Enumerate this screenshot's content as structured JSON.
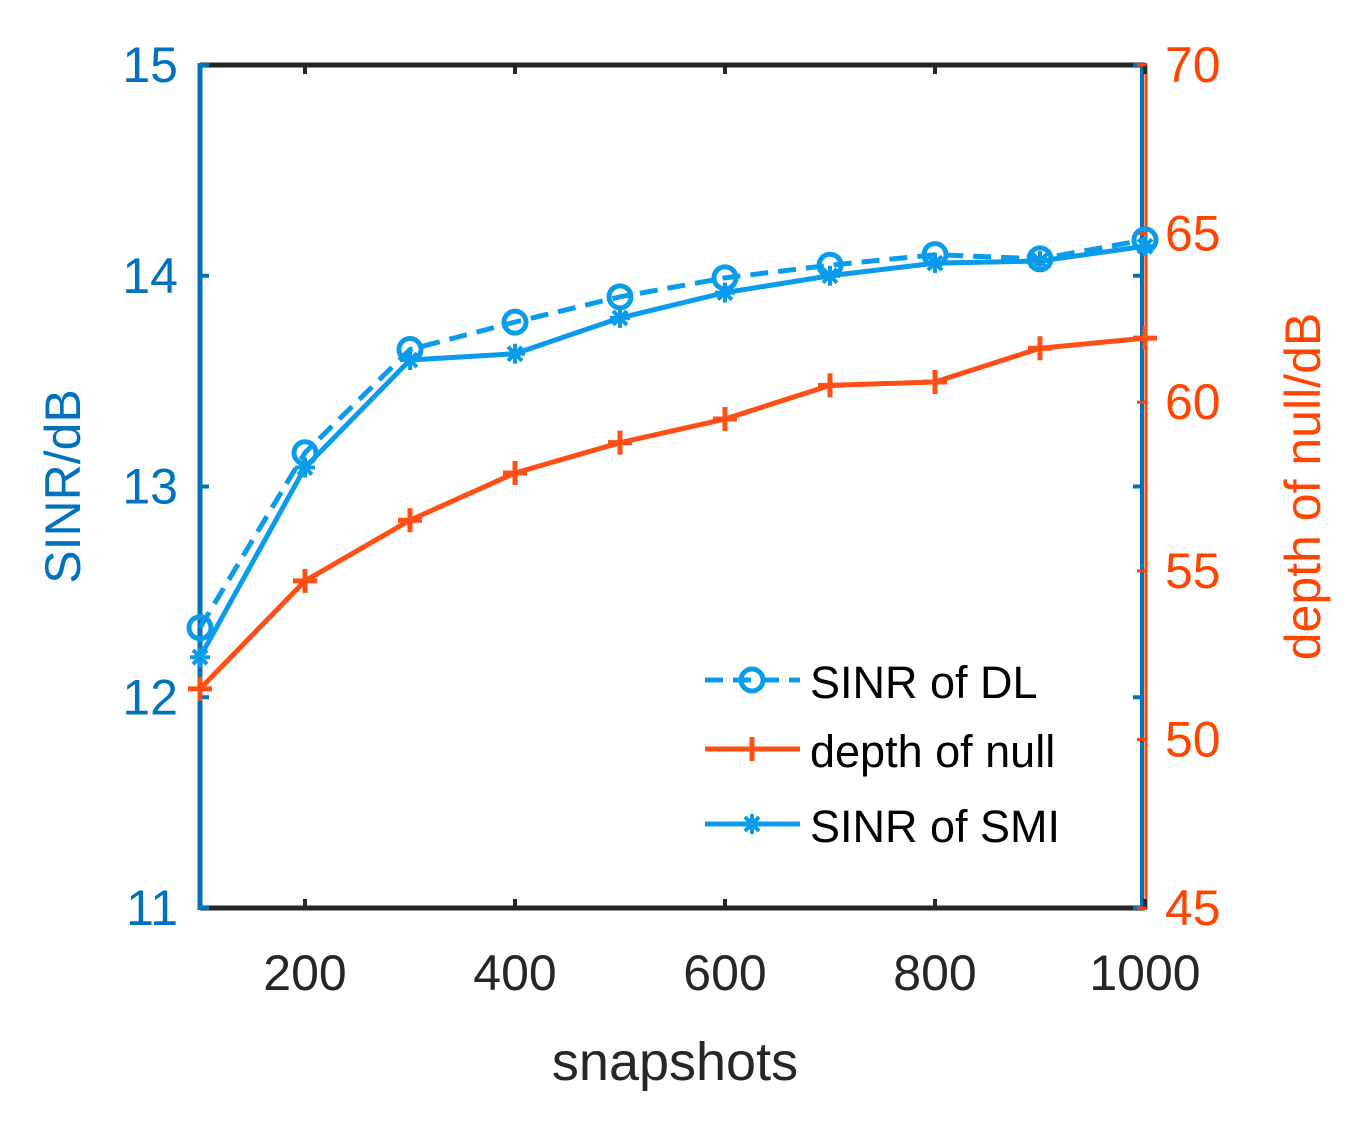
{
  "colors": {
    "left_axis": "#0072BD",
    "right_axis": "#FF4500",
    "box": "#262626",
    "sinr_dl": "#0A9BEB",
    "sinr_smi": "#0A9BEB",
    "null": "#FF4F14"
  },
  "chart_data": {
    "type": "line",
    "title": "",
    "xlabel": "snapshots",
    "ylabel_left": "SINR/dB",
    "ylabel_right": "depth of null/dB",
    "xlim": [
      100,
      1000
    ],
    "ylim_left": [
      11,
      15
    ],
    "ylim_right": [
      45,
      70
    ],
    "x_ticks": [
      200,
      400,
      600,
      800,
      1000
    ],
    "y_ticks_left": [
      11,
      12,
      13,
      14,
      15
    ],
    "y_ticks_right": [
      45,
      50,
      55,
      60,
      65,
      70
    ],
    "x": [
      100,
      200,
      300,
      400,
      500,
      600,
      700,
      800,
      900,
      1000
    ],
    "series": [
      {
        "name": "SINR of DL",
        "axis": "left",
        "style": "dashed",
        "marker": "circle",
        "values": [
          12.33,
          13.16,
          13.65,
          13.78,
          13.9,
          13.99,
          14.05,
          14.1,
          14.08,
          14.17
        ]
      },
      {
        "name": "depth of null",
        "axis": "right",
        "style": "solid",
        "marker": "plus",
        "values": [
          51.5,
          54.7,
          56.5,
          57.9,
          58.8,
          59.5,
          60.5,
          60.6,
          61.6,
          61.9
        ]
      },
      {
        "name": "SINR of SMI",
        "axis": "left",
        "style": "solid",
        "marker": "asterisk",
        "values": [
          12.19,
          13.09,
          13.6,
          13.63,
          13.8,
          13.92,
          14.0,
          14.06,
          14.07,
          14.14
        ]
      }
    ],
    "legend": {
      "location": "bottom-right",
      "entries": [
        "SINR of DL",
        "depth of null",
        "SINR of SMI"
      ]
    }
  }
}
